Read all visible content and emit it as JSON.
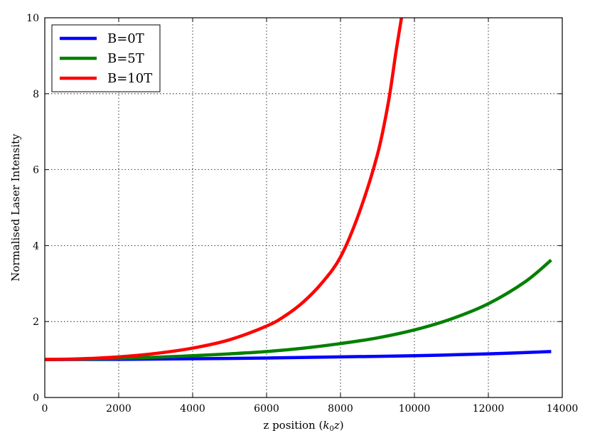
{
  "chart_data": {
    "type": "line",
    "xlabel_prefix": "z position (",
    "xlabel_math": "k",
    "xlabel_sub": "0",
    "xlabel_math2": "z",
    "xlabel_suffix": ")",
    "ylabel": "Normalised Laser Intensity",
    "xlim": [
      0,
      14000
    ],
    "ylim": [
      0,
      10
    ],
    "xticks": [
      0,
      2000,
      4000,
      6000,
      8000,
      10000,
      12000,
      14000
    ],
    "yticks": [
      0,
      2,
      4,
      6,
      8,
      10
    ],
    "xtick_labels": [
      "0",
      "2000",
      "4000",
      "6000",
      "8000",
      "10000",
      "12000",
      "14000"
    ],
    "ytick_labels": [
      "0",
      "2",
      "4",
      "6",
      "8",
      "10"
    ],
    "grid": true,
    "legend_position": "top-left",
    "series": [
      {
        "name": "B=0T",
        "color": "#0000ff",
        "x": [
          0,
          2000,
          4000,
          6000,
          8000,
          10000,
          12000,
          13700
        ],
        "y": [
          1.0,
          1.005,
          1.02,
          1.04,
          1.07,
          1.1,
          1.15,
          1.21
        ]
      },
      {
        "name": "B=5T",
        "color": "#008000",
        "x": [
          0,
          1000,
          2000,
          3000,
          4000,
          5000,
          6000,
          7000,
          8000,
          9000,
          10000,
          11000,
          12000,
          13000,
          13700
        ],
        "y": [
          1.0,
          1.01,
          1.03,
          1.06,
          1.1,
          1.15,
          1.21,
          1.3,
          1.42,
          1.57,
          1.78,
          2.07,
          2.47,
          3.05,
          3.62
        ]
      },
      {
        "name": "B=10T",
        "color": "#ff0000",
        "x": [
          0,
          1000,
          2000,
          3000,
          4000,
          5000,
          6000,
          6500,
          7000,
          7500,
          8000,
          8500,
          9000,
          9300,
          9500,
          9650
        ],
        "y": [
          1.0,
          1.02,
          1.07,
          1.16,
          1.3,
          1.52,
          1.88,
          2.15,
          2.52,
          3.02,
          3.7,
          4.85,
          6.4,
          7.8,
          9.1,
          10.0
        ]
      }
    ]
  }
}
